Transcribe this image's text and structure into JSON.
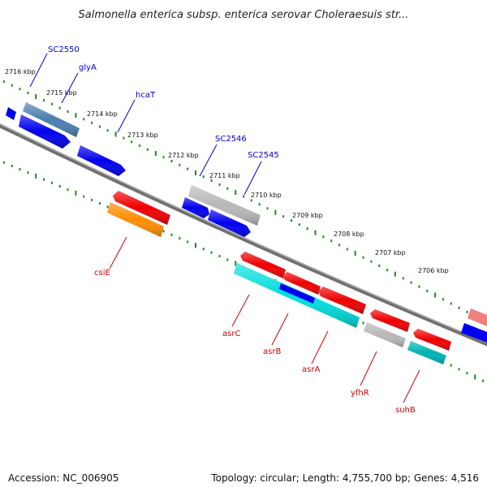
{
  "title": "Salmonella enterica subsp. enterica serovar Choleraesuis str...",
  "footer": {
    "accession": "Accession: NC_006905",
    "summary": "Topology: circular; Length: 4,755,700 bp; Genes: 4,516"
  },
  "colors": {
    "backbone": "#808080",
    "tick": "#1a8a1a",
    "forward_label": "#0000cc",
    "reverse_label": "#cc0000",
    "blue": "#0000ee",
    "steelblue": "#4a7fb0",
    "gray": "#b8b8b8",
    "red": "#ee0000",
    "cyan": "#00dddd",
    "orange": "#ff8c00",
    "teal": "#00b3b3",
    "pink": "#f08080"
  },
  "scale": {
    "unit": "kbp",
    "ticks": [
      "2716 kbp",
      "2715 kbp",
      "2714 kbp",
      "2713 kbp",
      "2712 kbp",
      "2711 kbp",
      "2710 kbp",
      "2709 kbp",
      "2708 kbp",
      "2707 kbp",
      "2706 kbp"
    ]
  },
  "genes": {
    "forward_labels": [
      "SC2550",
      "glyA",
      "hcaT",
      "SC2546",
      "SC2545"
    ],
    "reverse_labels": [
      "csiE",
      "asrC",
      "asrB",
      "asrA",
      "yfhR",
      "suhB"
    ]
  }
}
